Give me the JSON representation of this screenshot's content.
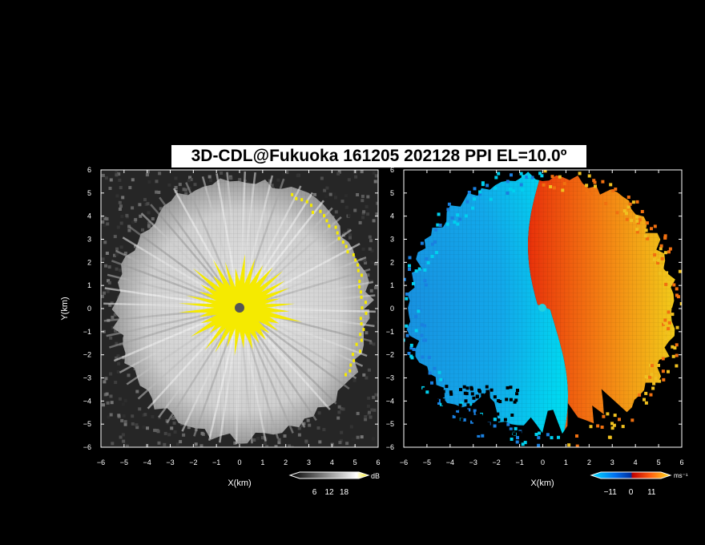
{
  "title": "3D-CDL@Fukuoka 161205 202128 PPI EL=10.0º",
  "colors": {
    "background": "#000000",
    "highlight_yellow": "#f5ea00",
    "vel_negative": "#0aa0e8",
    "vel_positive": "#f06010"
  },
  "chart_data": [
    {
      "type": "heatmap",
      "name": "reflectivity",
      "xlabel": "X(km)",
      "ylabel": "Y(km)",
      "xlim": [
        -6,
        6
      ],
      "ylim": [
        -6,
        6
      ],
      "ticks": [
        "−6",
        "−5",
        "−4",
        "−3",
        "−2",
        "−1",
        "0",
        "1",
        "2",
        "3",
        "4",
        "5",
        "6"
      ],
      "tick_values": [
        -6,
        -5,
        -4,
        -3,
        -2,
        -1,
        0,
        1,
        2,
        3,
        4,
        5,
        6
      ],
      "colorbar": {
        "unit": "dB",
        "ticks": [
          "6",
          "12",
          "18"
        ],
        "tick_values": [
          6,
          12,
          18
        ],
        "range": [
          0,
          24
        ]
      }
    },
    {
      "type": "heatmap",
      "name": "velocity",
      "xlabel": "X(km)",
      "xlim": [
        -6,
        6
      ],
      "ylim": [
        -6,
        6
      ],
      "ticks": [
        "−6",
        "−5",
        "−4",
        "−3",
        "−2",
        "−1",
        "0",
        "1",
        "2",
        "3",
        "4",
        "5",
        "6"
      ],
      "tick_values": [
        -6,
        -5,
        -4,
        -3,
        -2,
        -1,
        0,
        1,
        2,
        3,
        4,
        5,
        6
      ],
      "colorbar": {
        "unit": "ms⁻¹",
        "ticks": [
          "−11",
          "0",
          "11"
        ],
        "tick_values": [
          -11,
          0,
          11
        ],
        "range": [
          -16,
          16
        ]
      }
    }
  ]
}
